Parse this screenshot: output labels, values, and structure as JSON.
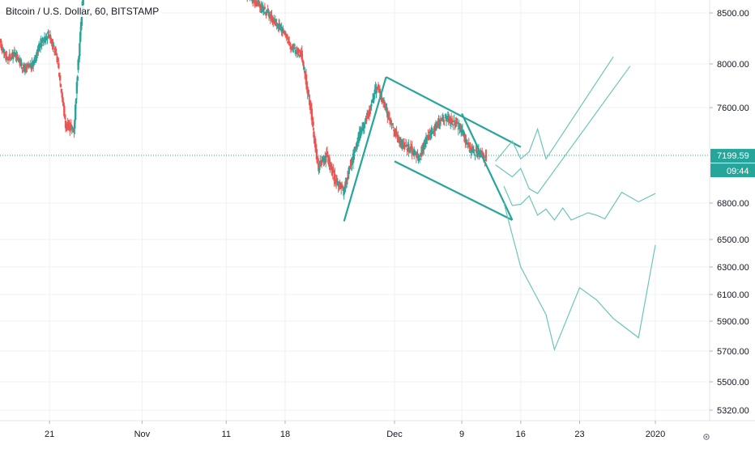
{
  "header": {
    "symbol": "Bitcoin / U.S. Dollar",
    "interval": "60",
    "exchange": "BITSTAMP"
  },
  "colors": {
    "up": "#26a69a",
    "down": "#ef5350",
    "pattern": "#26a69a",
    "projection": "#6cc6b8",
    "grid": "#eef0f4",
    "axis_text": "#131722",
    "last_price_bg": "#26a69a"
  },
  "chart_data": {
    "type": "candlestick",
    "y_axis_side": "right",
    "y_ticks": [
      "8500.00",
      "8000.00",
      "7600.00",
      "7199.59",
      "6800.00",
      "6500.00",
      "6300.00",
      "6100.00",
      "5900.00",
      "5700.00",
      "5500.00",
      "5320.00"
    ],
    "y_tick_values": [
      8500,
      8000,
      7600,
      6800,
      6500,
      6300,
      6100,
      5900,
      5700,
      5500,
      5320
    ],
    "x_ticks": [
      {
        "label": "21",
        "date": "2019-10-21"
      },
      {
        "label": "Nov",
        "date": "2019-11-01"
      },
      {
        "label": "11",
        "date": "2019-11-11"
      },
      {
        "label": "18",
        "date": "2019-11-18"
      },
      {
        "label": "Dec",
        "date": "2019-12-01"
      },
      {
        "label": "9",
        "date": "2019-12-09"
      },
      {
        "label": "16",
        "date": "2019-12-16"
      },
      {
        "label": "23",
        "date": "2019-12-23"
      },
      {
        "label": "2020",
        "date": "2020-01-01"
      }
    ],
    "last_price": {
      "value": 7199.59,
      "label": "7199.59",
      "countdown": "09:44"
    },
    "price_path": [
      [
        "2019-10-14",
        8400
      ],
      [
        "2019-10-15",
        8250
      ],
      [
        "2019-10-16",
        8050
      ],
      [
        "2019-10-17",
        8100
      ],
      [
        "2019-10-18",
        7950
      ],
      [
        "2019-10-19",
        7980
      ],
      [
        "2019-10-20",
        8200
      ],
      [
        "2019-10-21",
        8300
      ],
      [
        "2019-10-22",
        8050
      ],
      [
        "2019-10-23",
        7450
      ],
      [
        "2019-10-24",
        7420
      ],
      [
        "2019-10-25",
        8600
      ],
      [
        "2019-10-26",
        9300
      ],
      [
        "2019-10-27",
        9500
      ],
      [
        "2019-10-31",
        9200
      ],
      [
        "2019-11-04",
        9350
      ],
      [
        "2019-11-08",
        8800
      ],
      [
        "2019-11-10",
        8850
      ],
      [
        "2019-11-12",
        8780
      ],
      [
        "2019-11-14",
        8650
      ],
      [
        "2019-11-16",
        8500
      ],
      [
        "2019-11-18",
        8300
      ],
      [
        "2019-11-19",
        8150
      ],
      [
        "2019-11-20",
        8100
      ],
      [
        "2019-11-21",
        7650
      ],
      [
        "2019-11-22",
        7100
      ],
      [
        "2019-11-23",
        7200
      ],
      [
        "2019-11-24",
        7000
      ],
      [
        "2019-11-25",
        6900
      ],
      [
        "2019-11-26",
        7150
      ],
      [
        "2019-11-27",
        7400
      ],
      [
        "2019-11-28",
        7550
      ],
      [
        "2019-11-29",
        7800
      ],
      [
        "2019-11-30",
        7600
      ],
      [
        "2019-12-01",
        7400
      ],
      [
        "2019-12-02",
        7300
      ],
      [
        "2019-12-03",
        7250
      ],
      [
        "2019-12-04",
        7180
      ],
      [
        "2019-12-05",
        7350
      ],
      [
        "2019-12-06",
        7450
      ],
      [
        "2019-12-07",
        7520
      ],
      [
        "2019-12-08",
        7480
      ],
      [
        "2019-12-09",
        7420
      ],
      [
        "2019-12-10",
        7250
      ],
      [
        "2019-12-11",
        7220
      ],
      [
        "2019-12-12",
        7180
      ]
    ],
    "pattern_lines": [
      {
        "points": [
          [
            "2019-11-25",
            6650
          ],
          [
            "2019-11-30",
            7880
          ]
        ]
      },
      {
        "points": [
          [
            "2019-11-30",
            7880
          ],
          [
            "2019-12-16",
            7270
          ]
        ]
      },
      {
        "points": [
          [
            "2019-12-01",
            7150
          ],
          [
            "2019-12-15",
            6660
          ]
        ]
      },
      {
        "points": [
          [
            "2019-12-09",
            7550
          ],
          [
            "2019-12-15",
            6660
          ]
        ]
      }
    ],
    "projections": [
      {
        "points": [
          [
            "2019-12-13",
            7150
          ],
          [
            "2019-12-15",
            7320
          ],
          [
            "2019-12-16",
            7170
          ],
          [
            "2019-12-17",
            7230
          ],
          [
            "2019-12-18",
            7420
          ],
          [
            "2019-12-19",
            7170
          ],
          [
            "2019-12-27",
            8070
          ]
        ]
      },
      {
        "points": [
          [
            "2019-12-13",
            7120
          ],
          [
            "2019-12-15",
            7020
          ],
          [
            "2019-12-16",
            7090
          ],
          [
            "2019-12-17",
            6920
          ],
          [
            "2019-12-18",
            6880
          ],
          [
            "2019-12-29",
            7980
          ]
        ]
      },
      {
        "points": [
          [
            "2019-12-14",
            6940
          ],
          [
            "2019-12-15",
            6780
          ],
          [
            "2019-12-16",
            6790
          ],
          [
            "2019-12-17",
            6860
          ],
          [
            "2019-12-18",
            6700
          ],
          [
            "2019-12-19",
            6750
          ],
          [
            "2019-12-20",
            6660
          ],
          [
            "2019-12-21",
            6760
          ],
          [
            "2019-12-22",
            6660
          ],
          [
            "2019-12-24",
            6720
          ],
          [
            "2019-12-25",
            6700
          ],
          [
            "2019-12-26",
            6670
          ],
          [
            "2019-12-28",
            6890
          ],
          [
            "2019-12-30",
            6810
          ],
          [
            "2020-01-01",
            6880
          ]
        ]
      },
      {
        "points": [
          [
            "2019-12-14",
            6800
          ],
          [
            "2019-12-16",
            6300
          ],
          [
            "2019-12-19",
            5950
          ],
          [
            "2019-12-20",
            5710
          ],
          [
            "2019-12-23",
            6150
          ],
          [
            "2019-12-25",
            6060
          ],
          [
            "2019-12-27",
            5920
          ],
          [
            "2019-12-30",
            5790
          ],
          [
            "2020-01-01",
            6460
          ]
        ]
      }
    ]
  }
}
